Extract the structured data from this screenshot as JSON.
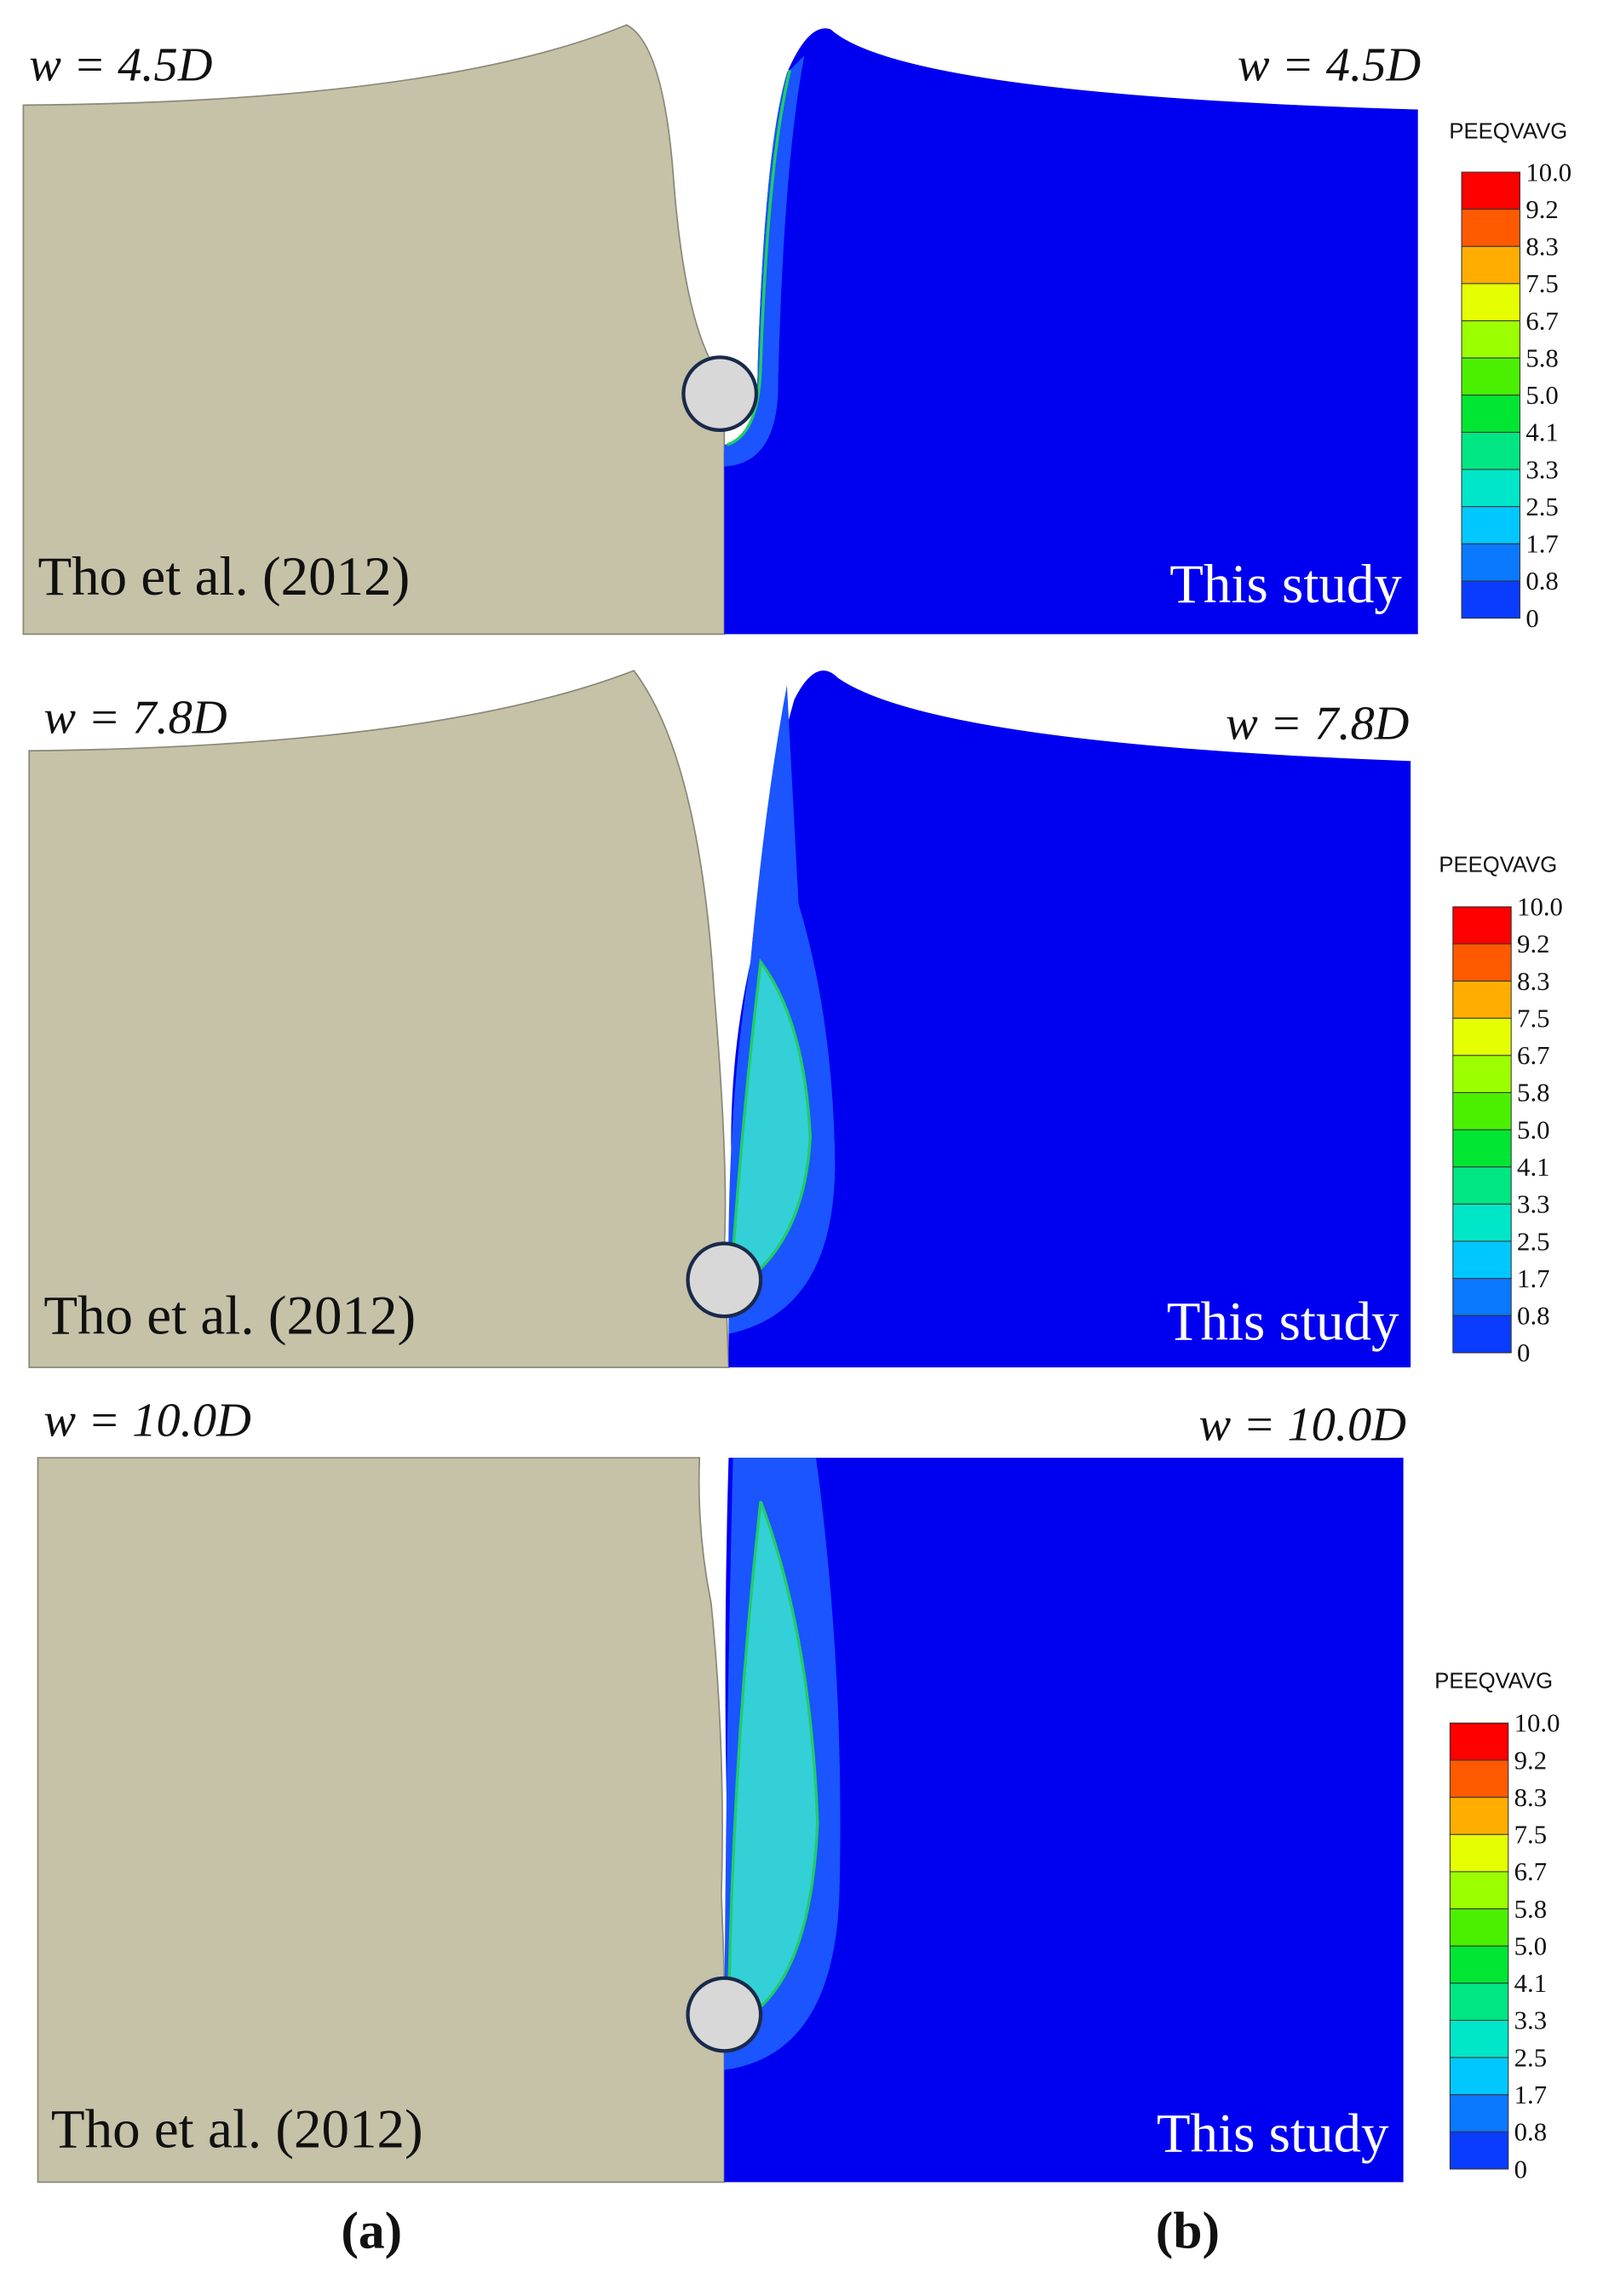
{
  "panels": [
    {
      "width": "w = 4.5D",
      "left_caption": "Tho et al. (2012)",
      "right_caption": "This study"
    },
    {
      "width": "w = 7.8D",
      "left_caption": "Tho et al. (2012)",
      "right_caption": "This study"
    },
    {
      "width": "w = 10.0D",
      "left_caption": "Tho et al. (2012)",
      "right_caption": "This study"
    }
  ],
  "legend": {
    "title": "PEEQVAVG",
    "labels": [
      "10.0",
      "9.2",
      "8.3",
      "7.5",
      "6.7",
      "5.8",
      "5.0",
      "4.1",
      "3.3",
      "2.5",
      "1.7",
      "0.8",
      "0"
    ]
  },
  "subcaptions": [
    "(a)",
    "(b)"
  ]
}
